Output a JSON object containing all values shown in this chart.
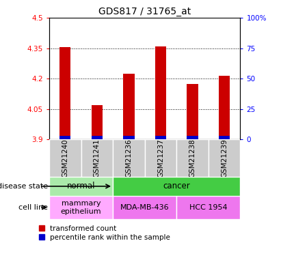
{
  "title": "GDS817 / 31765_at",
  "samples": [
    "GSM21240",
    "GSM21241",
    "GSM21236",
    "GSM21237",
    "GSM21238",
    "GSM21239"
  ],
  "red_values": [
    4.355,
    4.07,
    4.225,
    4.36,
    4.175,
    4.215
  ],
  "blue_values": [
    3,
    3,
    3,
    3,
    3,
    3
  ],
  "base": 3.9,
  "ylim_left": [
    3.9,
    4.5
  ],
  "ylim_right": [
    0,
    100
  ],
  "yticks_left": [
    3.9,
    4.05,
    4.2,
    4.35,
    4.5
  ],
  "yticks_right": [
    0,
    25,
    50,
    75,
    100
  ],
  "ytick_labels_left": [
    "3.9",
    "4.05",
    "4.2",
    "4.35",
    "4.5"
  ],
  "ytick_labels_right": [
    "0",
    "25",
    "50",
    "75",
    "100%"
  ],
  "disease_state_groups": [
    {
      "label": "normal",
      "cols": [
        0,
        1
      ],
      "color": "#aaeaaa"
    },
    {
      "label": "cancer",
      "cols": [
        2,
        3,
        4,
        5
      ],
      "color": "#44cc44"
    }
  ],
  "cell_line_groups": [
    {
      "label": "mammary\nepithelium",
      "cols": [
        0,
        1
      ],
      "color": "#ffaaff"
    },
    {
      "label": "MDA-MB-436",
      "cols": [
        2,
        3
      ],
      "color": "#ee77ee"
    },
    {
      "label": "HCC 1954",
      "cols": [
        4,
        5
      ],
      "color": "#ee77ee"
    }
  ],
  "legend_red": "transformed count",
  "legend_blue": "percentile rank within the sample",
  "disease_label": "disease state",
  "cell_line_label": "cell line",
  "red_color": "#cc0000",
  "blue_color": "#0000cc",
  "bar_width": 0.35,
  "grid_color": "#000000",
  "sample_bg": "#cccccc"
}
